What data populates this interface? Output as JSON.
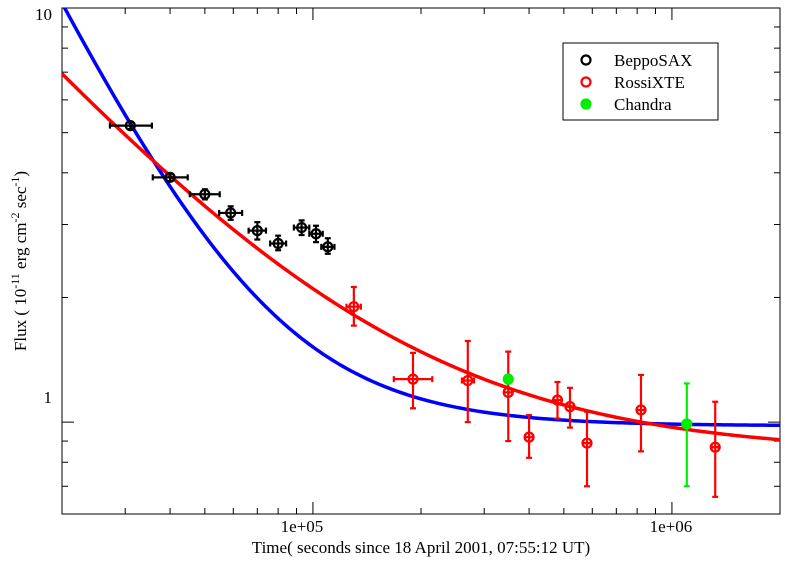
{
  "chart_data": {
    "type": "scatter",
    "xscale": "log",
    "yscale": "log",
    "xlim": [
      20000,
      2000000
    ],
    "ylim": [
      0.6,
      10
    ],
    "xticks": [
      {
        "value": 100000,
        "label": "1e+05"
      },
      {
        "value": 1000000,
        "label": "1e+06"
      }
    ],
    "yticks": [
      {
        "value": 1,
        "label": "1"
      },
      {
        "value": 10,
        "label": "10"
      }
    ],
    "xlabel": "Time( seconds since 18 April 2001, 07:55:12 UT)",
    "ylabel": {
      "prefix": "Flux ( 10",
      "exp1": "-11",
      "mid1": " erg cm",
      "exp2": "-2",
      "mid2": " sec",
      "exp3": "-1",
      "suffix": ")"
    },
    "legend": {
      "position": "top-right",
      "entries": [
        {
          "name": "BeppoSAX",
          "color": "#000000",
          "style": "open-circle"
        },
        {
          "name": "RossiXTE",
          "color": "#ff0000",
          "style": "open-circle"
        },
        {
          "name": "Chandra",
          "color": "#00ee00",
          "style": "filled-circle"
        }
      ]
    },
    "series": [
      {
        "name": "BeppoSAX",
        "color": "#000000",
        "marker": "open-circle",
        "points": [
          {
            "x": 31000,
            "y": 5.2,
            "xlo": 27200,
            "xhi": 35600,
            "ylo": 5.1,
            "yhi": 5.3
          },
          {
            "x": 40000,
            "y": 3.9,
            "xlo": 35800,
            "xhi": 44800,
            "ylo": 3.82,
            "yhi": 3.98
          },
          {
            "x": 50000,
            "y": 3.55,
            "xlo": 45400,
            "xhi": 55000,
            "ylo": 3.45,
            "yhi": 3.65
          },
          {
            "x": 59000,
            "y": 3.2,
            "xlo": 54800,
            "xhi": 63500,
            "ylo": 3.08,
            "yhi": 3.32
          },
          {
            "x": 70000,
            "y": 2.9,
            "xlo": 66200,
            "xhi": 74000,
            "ylo": 2.76,
            "yhi": 3.04
          },
          {
            "x": 80000,
            "y": 2.7,
            "xlo": 76000,
            "xhi": 84200,
            "ylo": 2.6,
            "yhi": 2.82
          },
          {
            "x": 93000,
            "y": 2.95,
            "xlo": 88500,
            "xhi": 97700,
            "ylo": 2.83,
            "yhi": 3.07
          },
          {
            "x": 102000,
            "y": 2.85,
            "xlo": 97700,
            "xhi": 106500,
            "ylo": 2.72,
            "yhi": 2.98
          },
          {
            "x": 110000,
            "y": 2.65,
            "xlo": 105500,
            "xhi": 114800,
            "ylo": 2.55,
            "yhi": 2.78
          }
        ]
      },
      {
        "name": "RossiXTE",
        "color": "#ff0000",
        "marker": "open-circle",
        "points": [
          {
            "x": 130000,
            "y": 1.9,
            "xlo": 124000,
            "xhi": 136000,
            "ylo": 1.71,
            "yhi": 2.12
          },
          {
            "x": 190000,
            "y": 1.27,
            "xlo": 168000,
            "xhi": 215000,
            "ylo": 1.08,
            "yhi": 1.47
          },
          {
            "x": 270000,
            "y": 1.26,
            "xlo": 260000,
            "xhi": 281000,
            "ylo": 1.0,
            "yhi": 1.57
          },
          {
            "x": 350000,
            "y": 1.18,
            "xlo": 341000,
            "xhi": 359000,
            "ylo": 0.9,
            "yhi": 1.48
          },
          {
            "x": 400000,
            "y": 0.92,
            "xlo": 390000,
            "xhi": 410000,
            "ylo": 0.82,
            "yhi": 1.04
          },
          {
            "x": 480000,
            "y": 1.13,
            "xlo": 468000,
            "xhi": 492000,
            "ylo": 1.02,
            "yhi": 1.25
          },
          {
            "x": 520000,
            "y": 1.09,
            "xlo": 507000,
            "xhi": 533000,
            "ylo": 0.97,
            "yhi": 1.21
          },
          {
            "x": 580000,
            "y": 0.89,
            "xlo": 566000,
            "xhi": 594000,
            "ylo": 0.7,
            "yhi": 1.06
          },
          {
            "x": 820000,
            "y": 1.07,
            "xlo": 800000,
            "xhi": 840000,
            "ylo": 0.85,
            "yhi": 1.3
          },
          {
            "x": 1320000,
            "y": 0.87,
            "xlo": 1290000,
            "xhi": 1350000,
            "ylo": 0.66,
            "yhi": 1.12
          }
        ]
      },
      {
        "name": "Chandra",
        "color": "#00ee00",
        "marker": "filled-circle",
        "points": [
          {
            "x": 350000,
            "y": 1.27,
            "xlo": 345000,
            "xhi": 355000,
            "ylo": 1.24,
            "yhi": 1.3
          },
          {
            "x": 1100000,
            "y": 0.99,
            "xlo": 1085000,
            "xhi": 1115000,
            "ylo": 0.7,
            "yhi": 1.24
          }
        ]
      }
    ],
    "fits": [
      {
        "name": "blue-fit",
        "color": "#0000ff",
        "model": "powerlaw+const",
        "A": 9.3,
        "x0": 20000,
        "alpha": 1.77,
        "C": 0.98
      },
      {
        "name": "red-fit",
        "color": "#ff0000",
        "model": "powerlaw+const",
        "A": 6.1,
        "x0": 20000,
        "alpha": 0.98,
        "C": 0.84
      }
    ]
  }
}
